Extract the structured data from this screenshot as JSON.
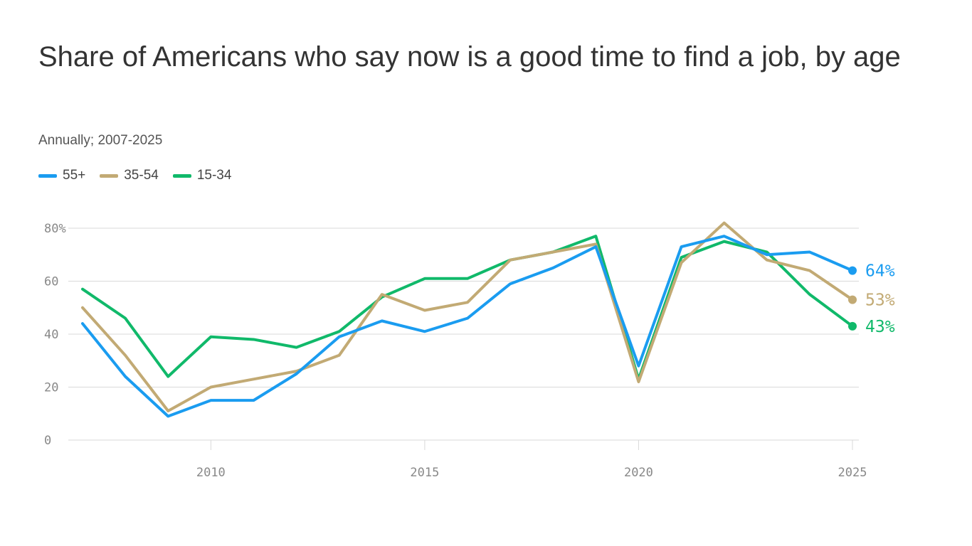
{
  "title": "Share of Americans who say now is a good time to find a job, by age",
  "subtitle": "Annually; 2007-2025",
  "legend": [
    {
      "label": "55+",
      "color": "#1a9cf0"
    },
    {
      "label": "35-54",
      "color": "#c2aa74"
    },
    {
      "label": "15-34",
      "color": "#10b96a"
    }
  ],
  "chart_data": {
    "type": "line",
    "x": [
      2007,
      2008,
      2009,
      2010,
      2011,
      2012,
      2013,
      2014,
      2015,
      2016,
      2017,
      2018,
      2019,
      2020,
      2021,
      2022,
      2023,
      2024,
      2025
    ],
    "series": [
      {
        "name": "55+",
        "color": "#1a9cf0",
        "values": [
          44,
          24,
          9,
          15,
          15,
          25,
          39,
          45,
          41,
          46,
          59,
          65,
          73,
          28,
          73,
          77,
          70,
          71,
          64
        ],
        "end_label": "64%"
      },
      {
        "name": "35-54",
        "color": "#c2aa74",
        "values": [
          50,
          32,
          11,
          20,
          23,
          26,
          32,
          55,
          49,
          52,
          68,
          71,
          74,
          22,
          67,
          82,
          68,
          64,
          53
        ],
        "end_label": "53%"
      },
      {
        "name": "15-34",
        "color": "#10b96a",
        "values": [
          57,
          46,
          24,
          39,
          38,
          35,
          41,
          54,
          61,
          61,
          68,
          71,
          77,
          23,
          69,
          75,
          71,
          55,
          43
        ],
        "end_label": "43%"
      }
    ],
    "ylim": [
      0,
      80
    ],
    "y_ticks": [
      0,
      20,
      40,
      60,
      80
    ],
    "y_tick_labels": [
      "0",
      "20",
      "40",
      "60",
      "80%"
    ],
    "x_ticks": [
      2010,
      2015,
      2020,
      2025
    ],
    "x_tick_labels": [
      "2010",
      "2015",
      "2020",
      "2025"
    ],
    "grid": true,
    "legend_position": "top-left"
  }
}
